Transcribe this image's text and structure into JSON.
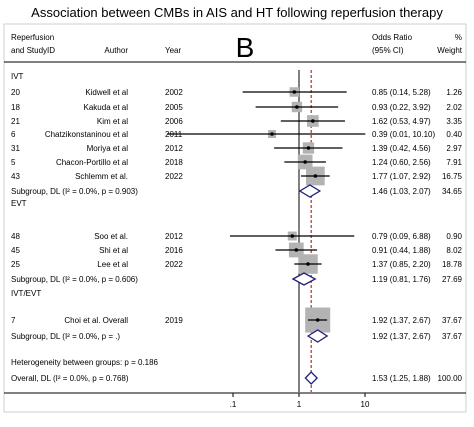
{
  "chart_data": {
    "type": "forest",
    "title": "Association between CMBs in AIS and HT following reperfusion therapy",
    "panel_label": "B",
    "columns": {
      "group_line1": "Reperfusion",
      "group_line2": "and StudyID",
      "author": "Author",
      "year": "Year",
      "effect_line1": "Odds Ratio",
      "effect_line2": "(95% CI)",
      "weight_line1": "%",
      "weight_line2": "Weight"
    },
    "x_axis": {
      "scale": "log",
      "ticks": [
        ".1",
        "1",
        "10"
      ],
      "ref_line": 1,
      "pooled_line": 1.53
    },
    "groups": [
      {
        "label": "IVT",
        "studies": [
          {
            "id": "20",
            "author": "Kidwell et al",
            "year": "2002",
            "or": 0.85,
            "lo": 0.14,
            "hi": 5.28,
            "ci_text": "0.85 (0.14, 5.28)",
            "weight": "1.26"
          },
          {
            "id": "18",
            "author": "Kakuda et al",
            "year": "2005",
            "or": 0.93,
            "lo": 0.22,
            "hi": 3.92,
            "ci_text": "0.93 (0.22, 3.92)",
            "weight": "2.02"
          },
          {
            "id": "21",
            "author": "Kim et al",
            "year": "2006",
            "or": 1.62,
            "lo": 0.53,
            "hi": 4.97,
            "ci_text": "1.62 (0.53, 4.97)",
            "weight": "3.35"
          },
          {
            "id": "6",
            "author": "Chatzikonstaninou et al",
            "year": "2011",
            "or": 0.39,
            "lo": 0.01,
            "hi": 10.1,
            "ci_text": "0.39 (0.01, 10.10)",
            "weight": "0.40"
          },
          {
            "id": "31",
            "author": "Moriya et al",
            "year": "2012",
            "or": 1.39,
            "lo": 0.42,
            "hi": 4.56,
            "ci_text": "1.39 (0.42, 4.56)",
            "weight": "2.97"
          },
          {
            "id": "5",
            "author": "Chacon-Portillo et al",
            "year": "2018",
            "or": 1.24,
            "lo": 0.6,
            "hi": 2.56,
            "ci_text": "1.24 (0.60, 2.56)",
            "weight": "7.91"
          },
          {
            "id": "43",
            "author": "Schlemm et al.",
            "year": "2022",
            "or": 1.77,
            "lo": 1.07,
            "hi": 2.92,
            "ci_text": "1.77 (1.07, 2.92)",
            "weight": "16.75"
          }
        ],
        "subgroup": {
          "label": "Subgroup, DL (I² = 0.0%, p = 0.903)",
          "or": 1.46,
          "lo": 1.03,
          "hi": 2.07,
          "ci_text": "1.46 (1.03, 2.07)",
          "weight": "34.65"
        }
      },
      {
        "label": "EVT",
        "studies": [
          {
            "id": "48",
            "author": "Soo et al.",
            "year": "2012",
            "or": 0.79,
            "lo": 0.09,
            "hi": 6.88,
            "ci_text": "0.79 (0.09, 6.88)",
            "weight": "0.90"
          },
          {
            "id": "45",
            "author": "Shi et al",
            "year": "2016",
            "or": 0.91,
            "lo": 0.44,
            "hi": 1.88,
            "ci_text": "0.91 (0.44, 1.88)",
            "weight": "8.02"
          },
          {
            "id": "25",
            "author": "Lee et al",
            "year": "2022",
            "or": 1.37,
            "lo": 0.85,
            "hi": 2.2,
            "ci_text": "1.37 (0.85, 2.20)",
            "weight": "18.78"
          }
        ],
        "subgroup": {
          "label": "Subgroup, DL (I² = 0.0%, p = 0.606)",
          "or": 1.19,
          "lo": 0.81,
          "hi": 1.76,
          "ci_text": "1.19 (0.81, 1.76)",
          "weight": "27.69"
        }
      },
      {
        "label": "IVT/EVT",
        "studies": [
          {
            "id": "7",
            "author": "Choi et al. Overall",
            "year": "2019",
            "or": 1.92,
            "lo": 1.37,
            "hi": 2.67,
            "ci_text": "1.92 (1.37, 2.67)",
            "weight": "37.67"
          }
        ],
        "subgroup": {
          "label": "Subgroup, DL (I² = 0.0%, p = .)",
          "or": 1.92,
          "lo": 1.37,
          "hi": 2.67,
          "ci_text": "1.92 (1.37, 2.67)",
          "weight": "37.67"
        }
      }
    ],
    "heterogeneity": "Heterogeneity between groups: p = 0.186",
    "overall": {
      "label": "Overall, DL (I² = 0.0%, p = 0.768)",
      "or": 1.53,
      "lo": 1.25,
      "hi": 1.88,
      "ci_text": "1.53 (1.25, 1.88)",
      "weight": "100.00"
    },
    "colors": {
      "box": "#b3b3b3",
      "diamond": "#1f1f7a",
      "pooled_line": "#b03030",
      "line": "#000000"
    }
  }
}
